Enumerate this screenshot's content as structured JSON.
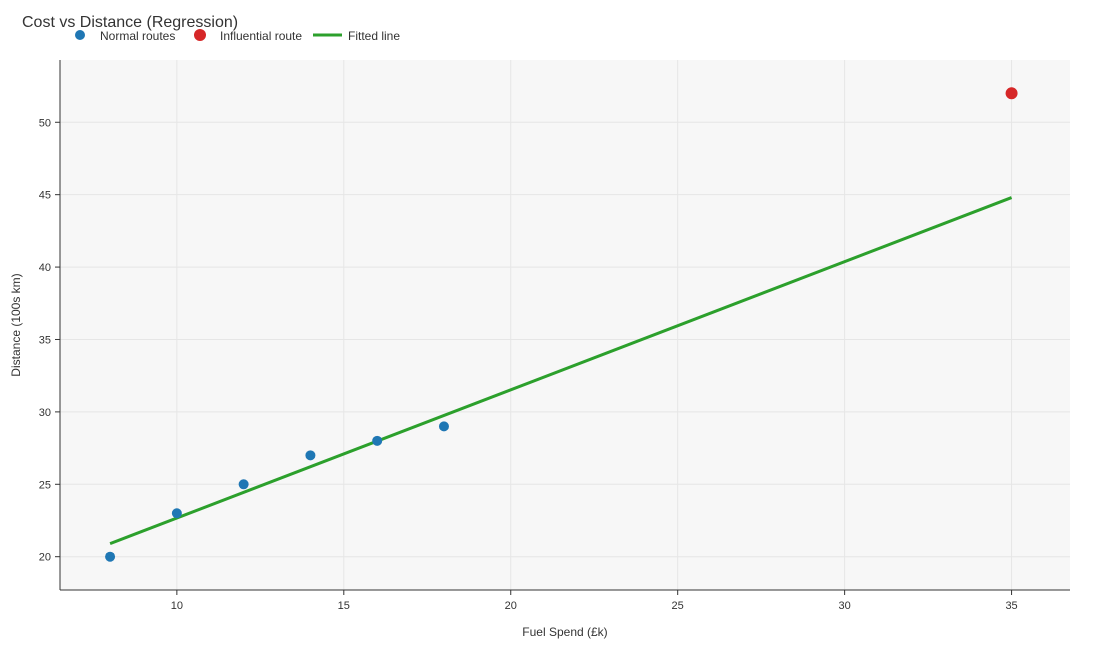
{
  "chart_data": {
    "type": "scatter",
    "title": "Cost vs Distance (Regression)",
    "xlabel": "Fuel Spend (£k)",
    "ylabel": "Distance (100s km)",
    "xlim": [
      6.5,
      36.75
    ],
    "ylim": [
      17.7,
      54.3
    ],
    "xticks": [
      10,
      15,
      20,
      25,
      30,
      35
    ],
    "yticks": [
      20,
      25,
      30,
      35,
      40,
      45,
      50
    ],
    "grid": true,
    "legend_position": "top-left",
    "series": [
      {
        "name": "Normal routes",
        "kind": "scatter",
        "color": "#1f77b4",
        "points": [
          {
            "x": 8,
            "y": 20
          },
          {
            "x": 10,
            "y": 23
          },
          {
            "x": 12,
            "y": 25
          },
          {
            "x": 14,
            "y": 27
          },
          {
            "x": 16,
            "y": 28
          },
          {
            "x": 18,
            "y": 29
          }
        ]
      },
      {
        "name": "Influential route",
        "kind": "scatter",
        "color": "#d62728",
        "points": [
          {
            "x": 35,
            "y": 52
          }
        ]
      },
      {
        "name": "Fitted line",
        "kind": "line",
        "color": "#2ca02c",
        "points": [
          {
            "x": 8,
            "y": 20.9
          },
          {
            "x": 35,
            "y": 44.8
          }
        ]
      }
    ]
  }
}
